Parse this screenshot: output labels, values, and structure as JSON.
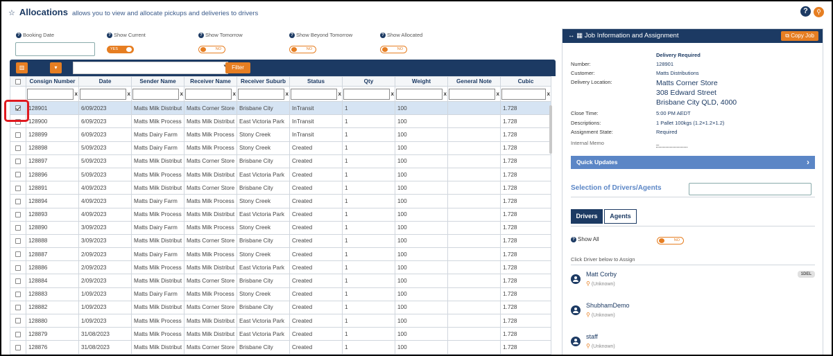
{
  "header": {
    "title": "Allocations",
    "subtitle": "allows you to view and allocate pickups and deliveries to drivers",
    "help_glyph": "?"
  },
  "filters": {
    "booking_date": {
      "label": "Booking Date",
      "value": ""
    },
    "show_current": {
      "label": "Show Current",
      "state": "YES"
    },
    "show_tomorrow": {
      "label": "Show Tomorrow",
      "state": "NO"
    },
    "show_beyond_tomorrow": {
      "label": "Show Beyond Tomorrow",
      "state": "NO"
    },
    "show_allocated": {
      "label": "Show Allocated",
      "state": "NO"
    }
  },
  "toolbar": {
    "filter_label": "Filter",
    "dropdown_glyph": "▾"
  },
  "table": {
    "columns": [
      "Consign Number",
      "Date",
      "Sender Name",
      "Receiver Name",
      "Receiver Suburb",
      "Status",
      "Qty",
      "Weight",
      "General Note",
      "Cubic"
    ],
    "clear_glyph": "x",
    "rows": [
      {
        "checked": true,
        "consign": "128901",
        "date": "6/09/2023",
        "sender": "Matts Milk Distribut",
        "receiver": "Matts Corner Store",
        "suburb": "Brisbane City",
        "status": "InTransit",
        "qty": "1",
        "weight": "100",
        "note": "",
        "cubic": "1.728"
      },
      {
        "checked": false,
        "consign": "128900",
        "date": "6/09/2023",
        "sender": "Matts Milk Process",
        "receiver": "Matts Milk Distribut",
        "suburb": "East Victoria Park",
        "status": "InTransit",
        "qty": "1",
        "weight": "100",
        "note": "",
        "cubic": "1.728"
      },
      {
        "checked": false,
        "consign": "128899",
        "date": "6/09/2023",
        "sender": "Matts Dairy Farm",
        "receiver": "Matts Milk Process",
        "suburb": "Stony Creek",
        "status": "InTransit",
        "qty": "1",
        "weight": "100",
        "note": "",
        "cubic": "1.728"
      },
      {
        "checked": false,
        "consign": "128898",
        "date": "5/09/2023",
        "sender": "Matts Dairy Farm",
        "receiver": "Matts Milk Process",
        "suburb": "Stony Creek",
        "status": "Created",
        "qty": "1",
        "weight": "100",
        "note": "",
        "cubic": "1.728"
      },
      {
        "checked": false,
        "consign": "128897",
        "date": "5/09/2023",
        "sender": "Matts Milk Distribut",
        "receiver": "Matts Corner Store",
        "suburb": "Brisbane City",
        "status": "Created",
        "qty": "1",
        "weight": "100",
        "note": "",
        "cubic": "1.728"
      },
      {
        "checked": false,
        "consign": "128896",
        "date": "5/09/2023",
        "sender": "Matts Milk Process",
        "receiver": "Matts Milk Distribut",
        "suburb": "East Victoria Park",
        "status": "Created",
        "qty": "1",
        "weight": "100",
        "note": "",
        "cubic": "1.728"
      },
      {
        "checked": false,
        "consign": "128891",
        "date": "4/09/2023",
        "sender": "Matts Milk Distribut",
        "receiver": "Matts Corner Store",
        "suburb": "Brisbane City",
        "status": "Created",
        "qty": "1",
        "weight": "100",
        "note": "",
        "cubic": "1.728"
      },
      {
        "checked": false,
        "consign": "128894",
        "date": "4/09/2023",
        "sender": "Matts Dairy Farm",
        "receiver": "Matts Milk Process",
        "suburb": "Stony Creek",
        "status": "Created",
        "qty": "1",
        "weight": "100",
        "note": "",
        "cubic": "1.728"
      },
      {
        "checked": false,
        "consign": "128893",
        "date": "4/09/2023",
        "sender": "Matts Milk Process",
        "receiver": "Matts Milk Distribut",
        "suburb": "East Victoria Park",
        "status": "Created",
        "qty": "1",
        "weight": "100",
        "note": "",
        "cubic": "1.728"
      },
      {
        "checked": false,
        "consign": "128890",
        "date": "3/09/2023",
        "sender": "Matts Dairy Farm",
        "receiver": "Matts Milk Process",
        "suburb": "Stony Creek",
        "status": "Created",
        "qty": "1",
        "weight": "100",
        "note": "",
        "cubic": "1.728"
      },
      {
        "checked": false,
        "consign": "128888",
        "date": "3/09/2023",
        "sender": "Matts Milk Distribut",
        "receiver": "Matts Corner Store",
        "suburb": "Brisbane City",
        "status": "Created",
        "qty": "1",
        "weight": "100",
        "note": "",
        "cubic": "1.728"
      },
      {
        "checked": false,
        "consign": "128887",
        "date": "2/09/2023",
        "sender": "Matts Dairy Farm",
        "receiver": "Matts Milk Process",
        "suburb": "Stony Creek",
        "status": "Created",
        "qty": "1",
        "weight": "100",
        "note": "",
        "cubic": "1.728"
      },
      {
        "checked": false,
        "consign": "128886",
        "date": "2/09/2023",
        "sender": "Matts Milk Process",
        "receiver": "Matts Milk Distribut",
        "suburb": "East Victoria Park",
        "status": "Created",
        "qty": "1",
        "weight": "100",
        "note": "",
        "cubic": "1.728"
      },
      {
        "checked": false,
        "consign": "128884",
        "date": "2/09/2023",
        "sender": "Matts Milk Distribut",
        "receiver": "Matts Corner Store",
        "suburb": "Brisbane City",
        "status": "Created",
        "qty": "1",
        "weight": "100",
        "note": "",
        "cubic": "1.728"
      },
      {
        "checked": false,
        "consign": "128883",
        "date": "1/09/2023",
        "sender": "Matts Dairy Farm",
        "receiver": "Matts Milk Process",
        "suburb": "Stony Creek",
        "status": "Created",
        "qty": "1",
        "weight": "100",
        "note": "",
        "cubic": "1.728"
      },
      {
        "checked": false,
        "consign": "128882",
        "date": "1/09/2023",
        "sender": "Matts Milk Distribut",
        "receiver": "Matts Corner Store",
        "suburb": "Brisbane City",
        "status": "Created",
        "qty": "1",
        "weight": "100",
        "note": "",
        "cubic": "1.728"
      },
      {
        "checked": false,
        "consign": "128880",
        "date": "1/09/2023",
        "sender": "Matts Milk Process",
        "receiver": "Matts Milk Distribut",
        "suburb": "East Victoria Park",
        "status": "Created",
        "qty": "1",
        "weight": "100",
        "note": "",
        "cubic": "1.728"
      },
      {
        "checked": false,
        "consign": "128879",
        "date": "31/08/2023",
        "sender": "Matts Milk Process",
        "receiver": "Matts Milk Distribut",
        "suburb": "East Victoria Park",
        "status": "Created",
        "qty": "1",
        "weight": "100",
        "note": "",
        "cubic": "1.728"
      },
      {
        "checked": false,
        "consign": "128876",
        "date": "31/08/2023",
        "sender": "Matts Milk Distribut",
        "receiver": "Matts Corner Store",
        "suburb": "Brisbane City",
        "status": "Created",
        "qty": "1",
        "weight": "100",
        "note": "",
        "cubic": "1.728"
      }
    ]
  },
  "job_panel": {
    "title": "Job Information and Assignment",
    "copy_label": "Copy Job",
    "delivery_required": "Delivery Required",
    "number_label": "Number:",
    "number": "128901",
    "customer_label": "Customer:",
    "customer": "Matts Distributions",
    "location_label": "Delivery Location:",
    "location_lines": [
      "Matts Corner Store",
      "308 Edward Street",
      "Brisbane City QLD, 4000"
    ],
    "close_label": "Close Time:",
    "close_time": "5:00 PM AEDT",
    "desc_label": "Descriptions:",
    "description": "1 Pallet 100kgs (1.2×1.2×1.2)",
    "state_label": "Assignment State:",
    "state": "Required",
    "memo_label": "Internal Memo",
    "memo_value": "_",
    "quick_updates": "Quick Updates",
    "selection_title": "Selection of Drivers/Agents",
    "tabs": [
      "Drivers",
      "Agents"
    ],
    "show_all_label": "Show All",
    "show_all_state": "NO",
    "click_note": "Click Driver below to Assign",
    "drivers": [
      {
        "name": "Matt Corby",
        "status": "(Unknown)",
        "badge": "1DEL"
      },
      {
        "name": "ShubhamDemo",
        "status": "(Unknown)",
        "badge": ""
      },
      {
        "name": "staff",
        "status": "(Unknown)",
        "badge": ""
      }
    ]
  },
  "icons": {
    "star": "star-outline-icon",
    "help": "help-circle-icon",
    "pin": "map-pin-icon",
    "columns": "columns-icon",
    "arrows": "arrows-horizontal-icon",
    "table": "table-icon",
    "copy": "copy-icon",
    "chevron": "chevron-right-icon",
    "user": "user-circle-icon"
  },
  "colors": {
    "navy": "#1c3a63",
    "orange": "#e67e22",
    "selected_row": "#d6e4f3",
    "quick_bar": "#5b86c6",
    "highlight": "#e0191f"
  }
}
